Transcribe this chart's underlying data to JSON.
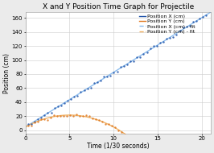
{
  "title": "X and Y Position Time Graph for Projectile",
  "xlabel": "Time (1/30 seconds)",
  "ylabel": "Position (cm)",
  "xlim": [
    0,
    21
  ],
  "ylim": [
    -5,
    168
  ],
  "yticks": [
    0,
    20,
    40,
    60,
    80,
    100,
    120,
    140,
    160
  ],
  "xticks": [
    0,
    5,
    10,
    15,
    20
  ],
  "background_color": "#ebebeb",
  "plot_background": "#ffffff",
  "x_data_color": "#2255aa",
  "y_data_color": "#e07820",
  "x_fit_color": "#88bbee",
  "y_fit_color": "#f0b060",
  "x_slope": 7.8,
  "x_intercept": 4.5,
  "y_a": -0.68,
  "y_b": 6.8,
  "y_c": 4.5,
  "scatter_alpha": 0.85,
  "line_width": 1.0,
  "scatter_size": 3,
  "legend_labels": [
    "Position X (cm)",
    "Position Y (cm)",
    "Position X (cm) - fit",
    "Position Y (cm) - fit"
  ],
  "title_fontsize": 6.5,
  "axis_fontsize": 5.5,
  "tick_fontsize": 5,
  "legend_fontsize": 4.5
}
